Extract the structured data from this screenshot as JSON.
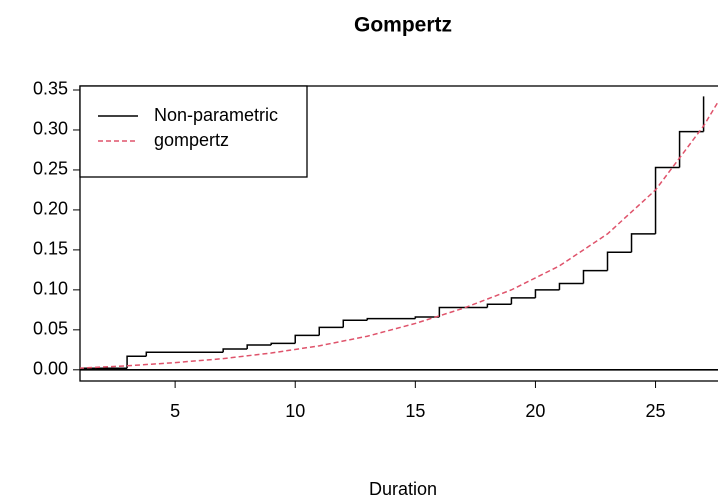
{
  "chart_data": {
    "type": "line",
    "title": "Gompertz",
    "x_label": "Duration",
    "xlim": [
      1.04,
      27.6
    ],
    "ylim": [
      -0.014,
      0.355
    ],
    "xticks": [
      5,
      10,
      15,
      20,
      25
    ],
    "yticks": [
      {
        "value": 0,
        "label": "0.00"
      },
      {
        "value": 0.05,
        "label": "0.05"
      },
      {
        "value": 0.1,
        "label": "0.10"
      },
      {
        "value": 0.15,
        "label": "0.15"
      },
      {
        "value": 0.2,
        "label": "0.20"
      },
      {
        "value": 0.25,
        "label": "0.25"
      },
      {
        "value": 0.3,
        "label": "0.30"
      },
      {
        "value": 0.35,
        "label": "0.35"
      }
    ],
    "hlines": [
      0
    ],
    "legend": "topleft",
    "series": [
      {
        "name": "Non-parametric",
        "color": "#000000",
        "step": "post",
        "dash": false,
        "x": [
          1,
          3,
          3.8,
          7,
          8,
          9,
          10,
          11,
          12,
          13,
          15,
          16,
          18,
          19,
          20,
          21,
          22,
          23,
          24,
          25,
          26,
          27
        ],
        "values": [
          0.002,
          0.017,
          0.022,
          0.026,
          0.031,
          0.033,
          0.043,
          0.053,
          0.062,
          0.064,
          0.066,
          0.078,
          0.082,
          0.09,
          0.1,
          0.108,
          0.124,
          0.147,
          0.17,
          0.253,
          0.298,
          0.342
        ]
      },
      {
        "name": "gompertz",
        "color": "#df536b",
        "dash": true,
        "x": [
          1,
          3,
          5,
          7,
          9,
          11,
          13,
          15,
          17,
          19,
          21,
          23,
          25,
          27,
          27.6
        ],
        "values": [
          0.002,
          0.005,
          0.009,
          0.014,
          0.021,
          0.03,
          0.042,
          0.058,
          0.077,
          0.1,
          0.13,
          0.17,
          0.225,
          0.305,
          0.335
        ]
      }
    ]
  }
}
